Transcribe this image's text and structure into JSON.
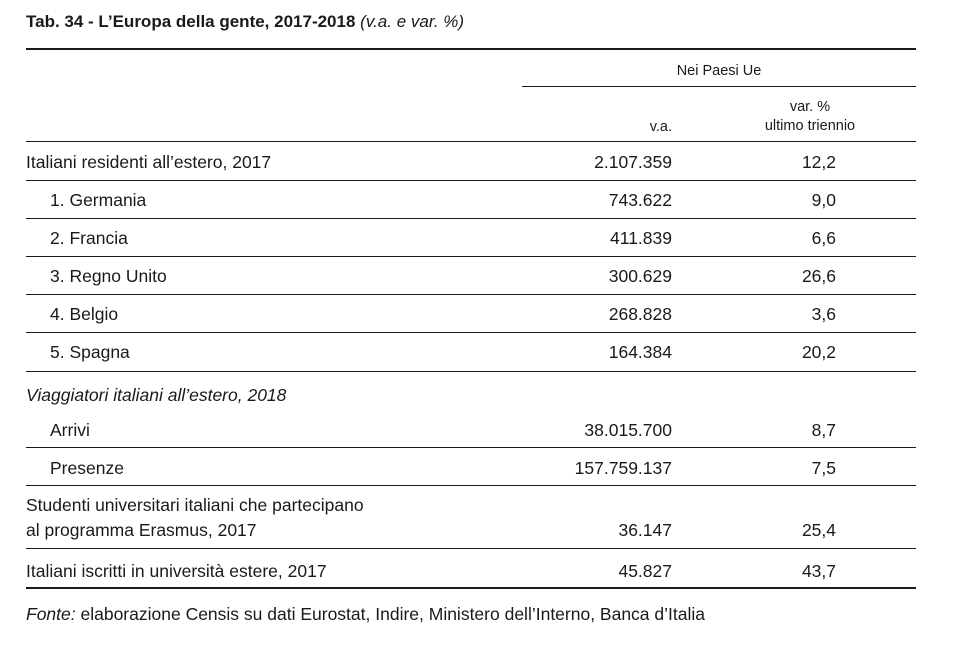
{
  "title": {
    "bold": "Tab. 34 - L’Europa della gente, 2017-2018",
    "italic": "(v.a. e var. %)"
  },
  "header": {
    "group": "Nei Paesi Ue",
    "col1": "v.a.",
    "col2_line1": "var. %",
    "col2_line2": "ultimo triennio"
  },
  "rows": [
    {
      "label": "Italiani residenti all’estero, 2017",
      "va": "2.107.359",
      "var": "12,2"
    },
    {
      "label": "1. Germania",
      "va": "743.622",
      "var": "9,0"
    },
    {
      "label": "2. Francia",
      "va": "411.839",
      "var": "6,6"
    },
    {
      "label": "3. Regno Unito",
      "va": "300.629",
      "var": "26,6"
    },
    {
      "label": "4. Belgio",
      "va": "268.828",
      "var": "3,6"
    },
    {
      "label": "5. Spagna",
      "va": "164.384",
      "var": "20,2"
    },
    {
      "label": "Viaggiatori italiani all’estero, 2018"
    },
    {
      "label": "Arrivi",
      "va": "38.015.700",
      "var": "8,7"
    },
    {
      "label": "Presenze",
      "va": "157.759.137",
      "var": "7,5"
    },
    {
      "label_line1": "Studenti universitari italiani che partecipano",
      "label_line2": "al programma Erasmus, 2017",
      "va": "36.147",
      "var": "25,4"
    },
    {
      "label": "Italiani iscritti in università estere, 2017",
      "va": "45.827",
      "var": "43,7"
    }
  ],
  "source": {
    "prefix": "Fonte:",
    "text": " elaborazione Censis su dati Eurostat, Indire, Ministero dell’Interno, Banca d’Italia"
  }
}
